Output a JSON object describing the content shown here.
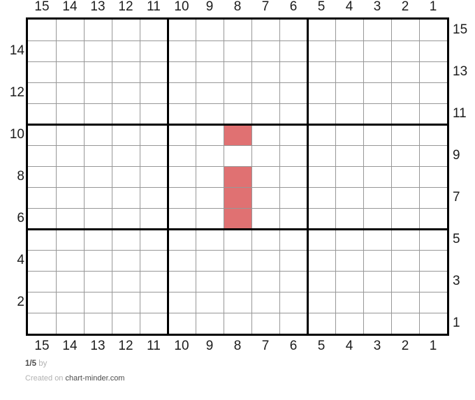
{
  "chart_data": {
    "type": "heatmap",
    "title": "",
    "description": "15x15 stitch grid chart with bold guide lines every 5 cells",
    "columns": 15,
    "rows": 15,
    "bold_line_every": 5,
    "col_labels_top": [
      "15",
      "14",
      "13",
      "12",
      "11",
      "10",
      "9",
      "8",
      "7",
      "6",
      "5",
      "4",
      "3",
      "2",
      "1"
    ],
    "col_labels_bottom": [
      "15",
      "14",
      "13",
      "12",
      "11",
      "10",
      "9",
      "8",
      "7",
      "6",
      "5",
      "4",
      "3",
      "2",
      "1"
    ],
    "row_labels_left": [
      "14",
      "12",
      "10",
      "8",
      "6",
      "4",
      "2"
    ],
    "row_labels_right": [
      "15",
      "13",
      "11",
      "9",
      "7",
      "5",
      "3",
      "1"
    ],
    "filled_cells": [
      {
        "col": 8,
        "row": 10
      },
      {
        "col": 8,
        "row": 8
      },
      {
        "col": 8,
        "row": 7
      },
      {
        "col": 8,
        "row": 6
      }
    ],
    "fill_color": "#e07172",
    "grid_line_color": "#979797",
    "bold_line_color": "#000000",
    "background_color": "#ffffff"
  },
  "footer": {
    "page_indicator": "1/5",
    "by_label": "by",
    "created_on_label": "Created on",
    "site_name": "chart-minder.com"
  }
}
